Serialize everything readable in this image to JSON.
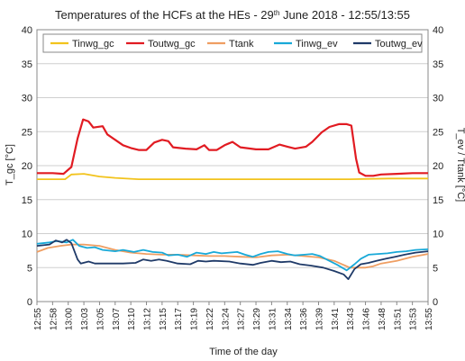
{
  "chart_data": {
    "type": "line",
    "title": "Temperatures of the HCFs at the HEs - 29",
    "title_sup": "th",
    "title_rest": " June 2018 - 12:55/13:55",
    "xlabel": "Time of the day",
    "ylabel": "T_gc [°C]",
    "ylabel_right": "T_ev / Ttank [°C]",
    "x_ticks": [
      "12:55",
      "12:58",
      "13:00",
      "13:03",
      "13:05",
      "13:07",
      "13:10",
      "13:12",
      "13:15",
      "13:17",
      "13:19",
      "13:22",
      "13:24",
      "13:27",
      "13:29",
      "13:31",
      "13:34",
      "13:36",
      "13:39",
      "13:41",
      "13:43",
      "13:46",
      "13:48",
      "13:51",
      "13:53",
      "13:55"
    ],
    "ylim": [
      0,
      40
    ],
    "y_ticks": [
      0,
      5,
      10,
      15,
      20,
      25,
      30,
      35,
      40
    ],
    "y_right_ticks": [
      0,
      5,
      10,
      15,
      20,
      25,
      30,
      35,
      40
    ],
    "grid": true,
    "legend": "top",
    "series": [
      {
        "name": "Tinwg_gc",
        "color": "#f2c31c",
        "points": [
          [
            0,
            18.0
          ],
          [
            1.8,
            18.0
          ],
          [
            2.2,
            18.7
          ],
          [
            3.0,
            18.8
          ],
          [
            4.0,
            18.4
          ],
          [
            5.0,
            18.2
          ],
          [
            6.5,
            18.0
          ],
          [
            10,
            18.0
          ],
          [
            15,
            18.0
          ],
          [
            20,
            18.0
          ],
          [
            22.5,
            18.1
          ],
          [
            25,
            18.1
          ]
        ]
      },
      {
        "name": "Toutwg_gc",
        "color": "#e11b22",
        "points": [
          [
            0,
            18.9
          ],
          [
            1.0,
            18.9
          ],
          [
            1.7,
            18.8
          ],
          [
            2.2,
            19.8
          ],
          [
            2.6,
            24.0
          ],
          [
            2.95,
            26.8
          ],
          [
            3.3,
            26.5
          ],
          [
            3.6,
            25.6
          ],
          [
            4.2,
            25.8
          ],
          [
            4.5,
            24.6
          ],
          [
            5.0,
            23.8
          ],
          [
            5.5,
            23.0
          ],
          [
            6.0,
            22.6
          ],
          [
            6.5,
            22.3
          ],
          [
            7.0,
            22.3
          ],
          [
            7.5,
            23.4
          ],
          [
            8.0,
            23.8
          ],
          [
            8.4,
            23.6
          ],
          [
            8.7,
            22.7
          ],
          [
            9.5,
            22.5
          ],
          [
            10.2,
            22.4
          ],
          [
            10.7,
            23.0
          ],
          [
            11.0,
            22.3
          ],
          [
            11.5,
            22.3
          ],
          [
            12.0,
            23.0
          ],
          [
            12.5,
            23.5
          ],
          [
            13.0,
            22.7
          ],
          [
            14.0,
            22.4
          ],
          [
            14.8,
            22.4
          ],
          [
            15.5,
            23.1
          ],
          [
            16.0,
            22.8
          ],
          [
            16.5,
            22.5
          ],
          [
            17.2,
            22.8
          ],
          [
            17.6,
            23.5
          ],
          [
            18.2,
            24.9
          ],
          [
            18.7,
            25.7
          ],
          [
            19.3,
            26.1
          ],
          [
            19.8,
            26.1
          ],
          [
            20.1,
            25.9
          ],
          [
            20.4,
            21.0
          ],
          [
            20.6,
            19.0
          ],
          [
            21.0,
            18.5
          ],
          [
            21.5,
            18.5
          ],
          [
            22.0,
            18.7
          ],
          [
            23.0,
            18.8
          ],
          [
            24.0,
            18.9
          ],
          [
            25,
            18.9
          ]
        ]
      },
      {
        "name": "Ttank",
        "color": "#ef9e62",
        "points": [
          [
            0,
            7.3
          ],
          [
            0.7,
            7.9
          ],
          [
            1.5,
            8.2
          ],
          [
            2.2,
            8.4
          ],
          [
            3.0,
            8.4
          ],
          [
            4.0,
            8.2
          ],
          [
            5.0,
            7.6
          ],
          [
            6.0,
            7.2
          ],
          [
            7.0,
            7.0
          ],
          [
            8.0,
            6.9
          ],
          [
            9.0,
            6.9
          ],
          [
            10.0,
            6.8
          ],
          [
            11.0,
            6.7
          ],
          [
            12.0,
            6.7
          ],
          [
            13.0,
            6.6
          ],
          [
            14.0,
            6.5
          ],
          [
            15.0,
            6.8
          ],
          [
            16.0,
            6.9
          ],
          [
            17.0,
            6.7
          ],
          [
            18.0,
            6.5
          ],
          [
            19.0,
            6.0
          ],
          [
            20.0,
            5.0
          ],
          [
            20.5,
            5.0
          ],
          [
            21.0,
            5.0
          ],
          [
            21.5,
            5.2
          ],
          [
            22.0,
            5.6
          ],
          [
            23.0,
            6.0
          ],
          [
            24.0,
            6.6
          ],
          [
            25,
            7.0
          ]
        ]
      },
      {
        "name": "Tinwg_ev",
        "color": "#18a9d8",
        "points": [
          [
            0,
            8.5
          ],
          [
            0.8,
            8.7
          ],
          [
            1.3,
            8.9
          ],
          [
            1.9,
            8.7
          ],
          [
            2.3,
            9.1
          ],
          [
            2.7,
            8.2
          ],
          [
            3.2,
            7.9
          ],
          [
            3.7,
            8.0
          ],
          [
            4.2,
            7.6
          ],
          [
            5.0,
            7.4
          ],
          [
            5.5,
            7.6
          ],
          [
            6.2,
            7.3
          ],
          [
            6.8,
            7.6
          ],
          [
            7.4,
            7.3
          ],
          [
            8.0,
            7.2
          ],
          [
            8.4,
            6.8
          ],
          [
            9.0,
            6.9
          ],
          [
            9.6,
            6.6
          ],
          [
            10.2,
            7.2
          ],
          [
            10.8,
            7.0
          ],
          [
            11.3,
            7.3
          ],
          [
            11.8,
            7.1
          ],
          [
            12.3,
            7.2
          ],
          [
            12.8,
            7.3
          ],
          [
            13.3,
            6.9
          ],
          [
            13.8,
            6.6
          ],
          [
            14.3,
            7.0
          ],
          [
            14.8,
            7.3
          ],
          [
            15.4,
            7.4
          ],
          [
            16.0,
            7.0
          ],
          [
            16.5,
            6.8
          ],
          [
            17.1,
            6.9
          ],
          [
            17.6,
            7.0
          ],
          [
            18.1,
            6.7
          ],
          [
            18.6,
            6.1
          ],
          [
            19.2,
            5.4
          ],
          [
            19.8,
            4.6
          ],
          [
            20.3,
            5.5
          ],
          [
            20.7,
            6.3
          ],
          [
            21.2,
            6.9
          ],
          [
            21.8,
            7.0
          ],
          [
            22.4,
            7.1
          ],
          [
            23.0,
            7.3
          ],
          [
            23.6,
            7.4
          ],
          [
            24.2,
            7.6
          ],
          [
            25,
            7.7
          ]
        ]
      },
      {
        "name": "Toutwg_ev",
        "color": "#1f3a68",
        "points": [
          [
            0,
            8.2
          ],
          [
            0.8,
            8.4
          ],
          [
            1.2,
            9.0
          ],
          [
            1.6,
            8.7
          ],
          [
            1.9,
            9.1
          ],
          [
            2.2,
            8.6
          ],
          [
            2.6,
            6.2
          ],
          [
            2.8,
            5.6
          ],
          [
            3.3,
            5.9
          ],
          [
            3.7,
            5.6
          ],
          [
            4.5,
            5.6
          ],
          [
            5.5,
            5.6
          ],
          [
            6.3,
            5.7
          ],
          [
            6.8,
            6.2
          ],
          [
            7.3,
            6.0
          ],
          [
            7.8,
            6.2
          ],
          [
            8.3,
            6.0
          ],
          [
            9.0,
            5.6
          ],
          [
            9.8,
            5.5
          ],
          [
            10.3,
            6.0
          ],
          [
            10.8,
            5.9
          ],
          [
            11.3,
            6.0
          ],
          [
            12.3,
            5.9
          ],
          [
            13.0,
            5.6
          ],
          [
            13.8,
            5.4
          ],
          [
            14.3,
            5.7
          ],
          [
            15.0,
            6.0
          ],
          [
            15.6,
            5.8
          ],
          [
            16.2,
            5.9
          ],
          [
            16.8,
            5.5
          ],
          [
            17.5,
            5.3
          ],
          [
            18.3,
            5.0
          ],
          [
            19.0,
            4.5
          ],
          [
            19.6,
            4.0
          ],
          [
            19.9,
            3.3
          ],
          [
            20.3,
            4.8
          ],
          [
            20.7,
            5.5
          ],
          [
            21.2,
            5.7
          ],
          [
            21.7,
            6.0
          ],
          [
            22.3,
            6.3
          ],
          [
            22.9,
            6.6
          ],
          [
            23.5,
            6.9
          ],
          [
            24.2,
            7.2
          ],
          [
            25,
            7.4
          ]
        ]
      }
    ]
  }
}
